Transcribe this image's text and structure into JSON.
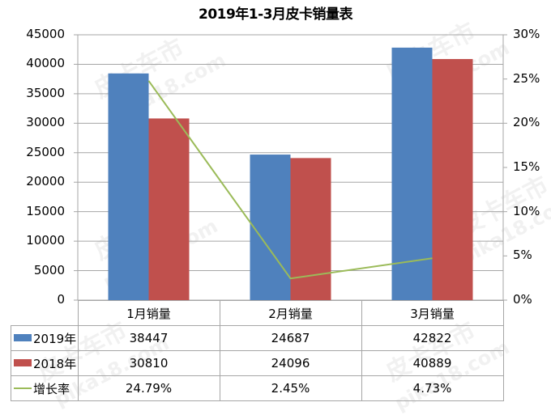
{
  "chart_data": {
    "type": "bar",
    "title": "2019年1-3月皮卡销量表",
    "categories": [
      "1月销量",
      "2月销量",
      "3月销量"
    ],
    "series": [
      {
        "name": "2019年",
        "type": "bar",
        "axis": "left",
        "color": "#4F81BD",
        "values": [
          38447,
          24687,
          42822
        ]
      },
      {
        "name": "2018年",
        "type": "bar",
        "axis": "left",
        "color": "#C0504D",
        "values": [
          30810,
          24096,
          40889
        ]
      },
      {
        "name": "增长率",
        "type": "line",
        "axis": "right",
        "color": "#9BBB59",
        "values": [
          24.79,
          2.45,
          4.73
        ],
        "labels": [
          "24.79%",
          "2.45%",
          "4.73%"
        ]
      }
    ],
    "xlabel": "",
    "ylabel": "",
    "ylim": [
      0,
      45000
    ],
    "y_ticks": [
      "0",
      "5000",
      "10000",
      "15000",
      "20000",
      "25000",
      "30000",
      "35000",
      "40000",
      "45000"
    ],
    "y2lim": [
      0,
      30
    ],
    "y2_ticks": [
      "0%",
      "5%",
      "10%",
      "15%",
      "20%",
      "25%",
      "30%"
    ],
    "grid": true,
    "legend_position": "data-table"
  },
  "table": {
    "headers": [
      "1月销量",
      "2月销量",
      "3月销量"
    ],
    "rows": [
      {
        "label": "2019年",
        "values": [
          "38447",
          "24687",
          "42822"
        ]
      },
      {
        "label": "2018年",
        "values": [
          "30810",
          "24096",
          "40889"
        ]
      },
      {
        "label": "增长率",
        "values": [
          "24.79%",
          "2.45%",
          "4.73%"
        ]
      }
    ]
  },
  "watermark": {
    "brand": "皮卡车市",
    "url": "pika18.com"
  }
}
